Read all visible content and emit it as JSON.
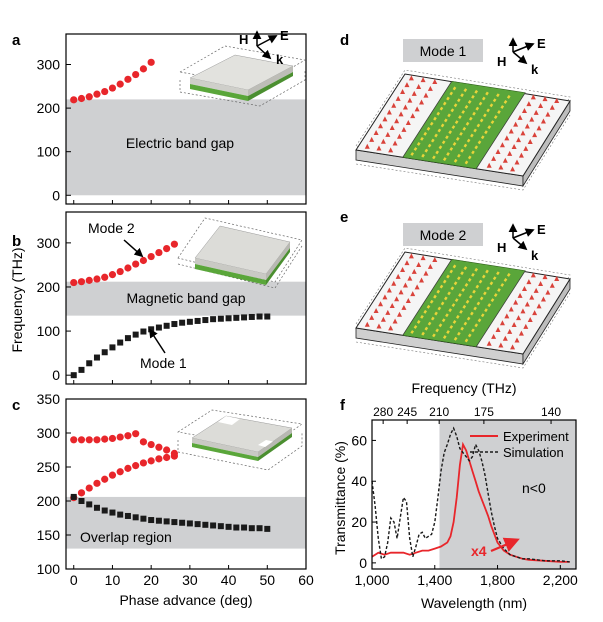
{
  "colors": {
    "gap_band": "#cfd0d2",
    "red_marker": "#e8262b",
    "black_marker": "#1a1a1a",
    "experiment_line": "#e8262b",
    "simulation_line": "#1a1a1a",
    "green_metal": "#5aa63a",
    "grey_metal": "#d9d9d6"
  },
  "chart_data": [
    {
      "panel": "a",
      "type": "scatter",
      "band_label": "Electric band gap",
      "band_range": [
        0,
        220
      ],
      "xlim": [
        -2,
        60
      ],
      "ylim": [
        -20,
        370
      ],
      "yticks": [
        0,
        100,
        200,
        300
      ],
      "inset_labels": {
        "h": "H",
        "e": "E",
        "k": "k"
      },
      "series": [
        {
          "color": "red",
          "x": [
            0,
            2,
            4,
            6,
            8,
            10,
            12,
            14,
            16,
            18,
            20
          ],
          "y": [
            219,
            222,
            226,
            232,
            238,
            246,
            255,
            266,
            277,
            290,
            305
          ]
        }
      ]
    },
    {
      "panel": "b",
      "type": "scatter",
      "band_label": "Magnetic band gap",
      "band_range": [
        135,
        212
      ],
      "xlim": [
        -2,
        60
      ],
      "ylim": [
        -20,
        370
      ],
      "yticks": [
        0,
        100,
        200,
        300
      ],
      "ylabel": "Frequency (THz)",
      "mode2_label": "Mode  2",
      "mode1_label": "Mode 1",
      "series": [
        {
          "color": "red",
          "x": [
            0,
            2,
            4,
            6,
            8,
            10,
            12,
            14,
            16,
            18,
            20,
            22,
            24,
            26
          ],
          "y": [
            210,
            212,
            215,
            218,
            222,
            228,
            235,
            243,
            252,
            260,
            269,
            278,
            287,
            297
          ]
        },
        {
          "color": "black",
          "x": [
            0,
            2,
            4,
            6,
            8,
            10,
            12,
            14,
            16,
            18,
            20,
            22,
            24,
            26,
            28,
            30,
            32,
            34,
            36,
            38,
            40,
            42,
            44,
            46,
            48,
            50
          ],
          "y": [
            0,
            12,
            27,
            40,
            52,
            63,
            74,
            84,
            92,
            99,
            104,
            108,
            112,
            116,
            119,
            121,
            123,
            125,
            127,
            128,
            129,
            130,
            131,
            132,
            133,
            133
          ]
        }
      ]
    },
    {
      "panel": "c",
      "type": "scatter",
      "band_label": "Overlap region",
      "band_range": [
        130,
        206
      ],
      "xlim": [
        -2,
        60
      ],
      "ylim": [
        100,
        350
      ],
      "yticks": [
        100,
        150,
        200,
        250,
        300,
        350
      ],
      "xticks": [
        0,
        10,
        20,
        30,
        40,
        50,
        60
      ],
      "xlabel": "Phase advance (deg)",
      "series": [
        {
          "color": "red",
          "x": [
            0,
            2,
            4,
            6,
            8,
            10,
            12,
            14,
            16,
            18,
            20,
            22,
            24,
            26
          ],
          "y": [
            290,
            290,
            290,
            290,
            291,
            292,
            294,
            296,
            299,
            287,
            283,
            279,
            275,
            270
          ]
        },
        {
          "color": "red",
          "x": [
            0,
            2,
            4,
            6,
            8,
            10,
            12,
            14,
            16,
            18,
            20,
            22,
            24,
            26
          ],
          "y": [
            205,
            212,
            219,
            226,
            232,
            238,
            243,
            248,
            252,
            256,
            259,
            262,
            264,
            266
          ]
        },
        {
          "color": "black",
          "x": [
            0,
            2,
            4,
            6,
            8,
            10,
            12,
            14,
            16,
            18,
            20,
            22,
            24,
            26,
            28,
            30,
            32,
            34,
            36,
            38,
            40,
            42,
            44,
            46,
            48,
            50
          ],
          "y": [
            206,
            200,
            195,
            190,
            186,
            183,
            180,
            178,
            176,
            174,
            172,
            171,
            170,
            169,
            168,
            167,
            166,
            165,
            164,
            163,
            162,
            161,
            161,
            160,
            160,
            159
          ]
        }
      ]
    },
    {
      "panel": "f",
      "type": "line",
      "xlabel": "Wavelength (nm)",
      "ylabel": "Transmittance (%)",
      "top_axis_label": "Frequency (THz)",
      "top_ticks": [
        {
          "label": "280",
          "wavelength": 1071
        },
        {
          "label": "245",
          "wavelength": 1224
        },
        {
          "label": "210",
          "wavelength": 1428
        },
        {
          "label": "175",
          "wavelength": 1713
        },
        {
          "label": "140",
          "wavelength": 2141
        }
      ],
      "xlim": [
        1000,
        2300
      ],
      "ylim": [
        -3,
        70
      ],
      "xticks": [
        1000,
        1400,
        1800,
        2200
      ],
      "xtick_labels": [
        "1,000",
        "1,400",
        "1,800",
        "2,200"
      ],
      "yticks": [
        0,
        20,
        40,
        60
      ],
      "shaded_region": [
        1430,
        2300
      ],
      "region_label": "n<0",
      "scale_label": "x4",
      "legend_position": "top-right",
      "series": [
        {
          "name": "Experiment",
          "style": "solid",
          "color": "red",
          "x": [
            1000,
            1040,
            1080,
            1120,
            1160,
            1200,
            1240,
            1280,
            1320,
            1360,
            1400,
            1440,
            1480,
            1500,
            1520,
            1540,
            1560,
            1580,
            1600,
            1620,
            1640,
            1660,
            1680,
            1700,
            1720,
            1740,
            1760,
            1780,
            1800,
            1840,
            1880,
            1920,
            1960,
            2000,
            2100,
            2200,
            2260
          ],
          "y": [
            3,
            5,
            4,
            5,
            5,
            5,
            4,
            5,
            6,
            6,
            7,
            8,
            10,
            13,
            20,
            32,
            48,
            58,
            55,
            50,
            45,
            40,
            35,
            31,
            27,
            23,
            18,
            14,
            10,
            6,
            4,
            3,
            2,
            1.5,
            1,
            0.5,
            0.5
          ]
        },
        {
          "name": "Simulation",
          "style": "dashed",
          "color": "black",
          "x": [
            1000,
            1020,
            1040,
            1060,
            1080,
            1100,
            1120,
            1140,
            1160,
            1180,
            1200,
            1220,
            1240,
            1260,
            1280,
            1300,
            1320,
            1340,
            1360,
            1380,
            1400,
            1420,
            1440,
            1460,
            1480,
            1500,
            1520,
            1540,
            1560,
            1580,
            1600,
            1620,
            1640,
            1660,
            1680,
            1700,
            1720,
            1740,
            1760,
            1780,
            1800,
            1840,
            1880,
            1920,
            1960,
            2000,
            2100,
            2200,
            2260
          ],
          "y": [
            40,
            28,
            12,
            2,
            3,
            10,
            22,
            20,
            12,
            22,
            32,
            30,
            12,
            3,
            8,
            14,
            15,
            12,
            13,
            14,
            20,
            32,
            45,
            54,
            58,
            63,
            66,
            62,
            56,
            54,
            52,
            50,
            52,
            58,
            55,
            50,
            43,
            34,
            25,
            18,
            12,
            7,
            4,
            3,
            2,
            2,
            1,
            1,
            0.5
          ]
        }
      ]
    }
  ],
  "panel_labels": {
    "a": "a",
    "b": "b",
    "c": "c",
    "d": "d",
    "e": "e",
    "f": "f"
  },
  "mode_panels": [
    {
      "panel": "d",
      "title": "Mode 1"
    },
    {
      "panel": "e",
      "title": "Mode 2"
    }
  ],
  "axis_labels": {
    "h": "H",
    "e": "E",
    "k": "k"
  },
  "icons": [
    "field-axes-icon",
    "fishnet-unit-cell-icon",
    "arrow-icon"
  ]
}
